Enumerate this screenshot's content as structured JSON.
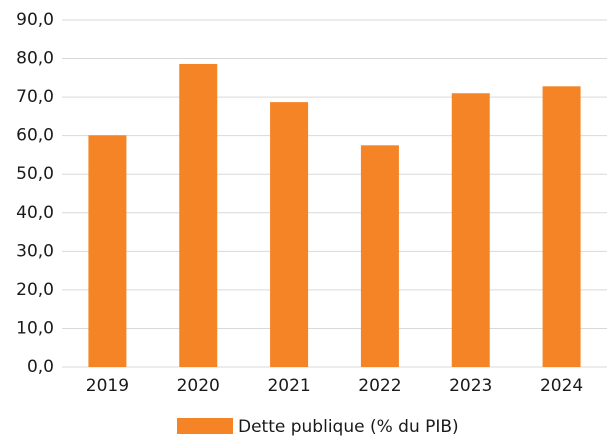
{
  "chart_data": {
    "type": "bar",
    "categories": [
      "2019",
      "2020",
      "2021",
      "2022",
      "2023",
      "2024"
    ],
    "series": [
      {
        "name": "Dette publique (% du PIB)",
        "color": "#f58426",
        "values": [
          60.1,
          78.6,
          68.7,
          57.5,
          71.0,
          72.8
        ]
      }
    ],
    "ylim": [
      0,
      90
    ],
    "yticks": [
      {
        "value": 0,
        "label": "0,0"
      },
      {
        "value": 10,
        "label": "10,0"
      },
      {
        "value": 20,
        "label": "20,0"
      },
      {
        "value": 30,
        "label": "30,0"
      },
      {
        "value": 40,
        "label": "40,0"
      },
      {
        "value": 50,
        "label": "50,0"
      },
      {
        "value": 60,
        "label": "60,0"
      },
      {
        "value": 70,
        "label": "70,0"
      },
      {
        "value": 80,
        "label": "80,0"
      },
      {
        "value": 90,
        "label": "90,0"
      }
    ],
    "grid": true,
    "legend": "bottom"
  }
}
